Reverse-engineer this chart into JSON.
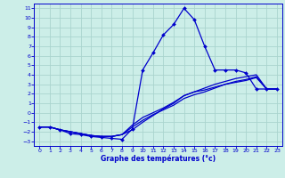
{
  "xlabel": "Graphe des températures (°c)",
  "xlim": [
    -0.5,
    23.5
  ],
  "ylim": [
    -3.5,
    11.5
  ],
  "xticks": [
    0,
    1,
    2,
    3,
    4,
    5,
    6,
    7,
    8,
    9,
    10,
    11,
    12,
    13,
    14,
    15,
    16,
    17,
    18,
    19,
    20,
    21,
    22,
    23
  ],
  "yticks": [
    -3,
    -2,
    -1,
    0,
    1,
    2,
    3,
    4,
    5,
    6,
    7,
    8,
    9,
    10,
    11
  ],
  "background_color": "#cceee8",
  "grid_color": "#aad4ce",
  "line_color": "#0000cc",
  "line1_x": [
    0,
    1,
    2,
    3,
    4,
    5,
    6,
    7,
    8,
    9,
    10,
    11,
    12,
    13,
    14,
    15,
    16,
    17,
    18,
    19,
    20,
    21,
    22,
    23
  ],
  "line1_y": [
    -1.5,
    -1.5,
    -1.8,
    -2.2,
    -2.3,
    -2.5,
    -2.6,
    -2.7,
    -2.8,
    -1.7,
    4.5,
    6.3,
    8.2,
    9.3,
    11.0,
    9.8,
    7.0,
    4.5,
    4.5,
    4.5,
    4.2,
    2.5,
    2.5,
    2.5
  ],
  "line2_x": [
    0,
    1,
    2,
    3,
    4,
    5,
    6,
    7,
    8,
    9,
    10,
    11,
    12,
    13,
    14,
    15,
    16,
    17,
    18,
    19,
    20,
    21,
    22,
    23
  ],
  "line2_y": [
    -1.5,
    -1.5,
    -1.8,
    -2.0,
    -2.2,
    -2.4,
    -2.5,
    -2.5,
    -2.3,
    -1.8,
    -1.0,
    -0.3,
    0.4,
    1.0,
    1.8,
    2.2,
    2.6,
    3.0,
    3.3,
    3.6,
    3.8,
    4.0,
    2.5,
    2.5
  ],
  "line3_x": [
    0,
    1,
    2,
    3,
    4,
    5,
    6,
    7,
    8,
    9,
    10,
    11,
    12,
    13,
    14,
    15,
    16,
    17,
    18,
    19,
    20,
    21,
    22,
    23
  ],
  "line3_y": [
    -1.5,
    -1.5,
    -1.8,
    -2.0,
    -2.2,
    -2.4,
    -2.5,
    -2.5,
    -2.3,
    -1.5,
    -0.8,
    -0.2,
    0.3,
    0.8,
    1.5,
    1.9,
    2.2,
    2.6,
    3.0,
    3.3,
    3.5,
    3.8,
    2.5,
    2.5
  ],
  "line4_x": [
    0,
    1,
    2,
    3,
    4,
    5,
    6,
    7,
    8,
    9,
    10,
    11,
    12,
    13,
    14,
    15,
    16,
    17,
    18,
    19,
    20,
    21,
    22,
    23
  ],
  "line4_y": [
    -1.5,
    -1.5,
    -1.8,
    -2.0,
    -2.2,
    -2.4,
    -2.5,
    -2.5,
    -2.3,
    -1.3,
    -0.5,
    0.0,
    0.5,
    1.1,
    1.8,
    2.2,
    2.4,
    2.7,
    3.0,
    3.2,
    3.4,
    3.7,
    2.5,
    2.5
  ]
}
